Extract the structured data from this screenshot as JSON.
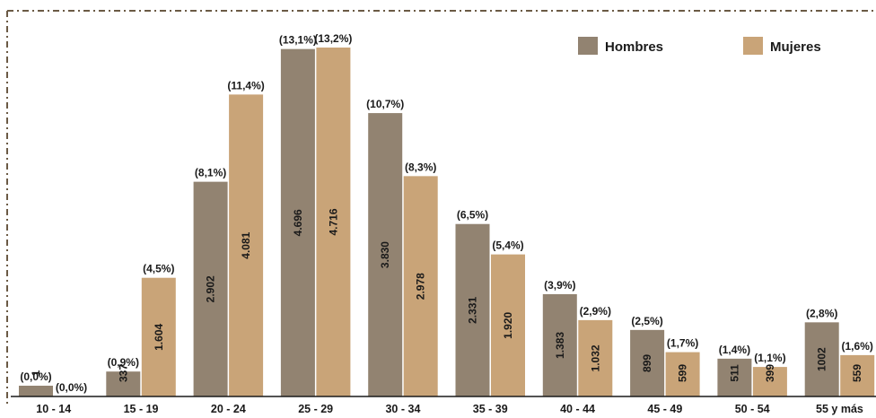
{
  "chart_data": {
    "type": "bar",
    "categories": [
      "10 - 14",
      "15 - 19",
      "20 - 24",
      "25 - 29",
      "30 - 34",
      "35 - 39",
      "40 - 44",
      "45 - 49",
      "50 - 54",
      "55 y más"
    ],
    "series": [
      {
        "name": "Hombres",
        "color": "#928371",
        "values": [
          1,
          337,
          2902,
          4696,
          3830,
          2331,
          1383,
          899,
          511,
          1002
        ],
        "value_labels": [
          "1",
          "337",
          "2.902",
          "4.696",
          "3.830",
          "2.331",
          "1.383",
          "899",
          "511",
          "1002"
        ],
        "percent_labels": [
          "(0,0%)",
          "(0,9%)",
          "(8,1%)",
          "(13,1%)",
          "(10,7%)",
          "(6,5%)",
          "(3,9%)",
          "(2,5%)",
          "(1,4%)",
          "(2,8%)"
        ]
      },
      {
        "name": "Mujeres",
        "color": "#c9a478",
        "values": [
          0,
          1604,
          4081,
          4716,
          2978,
          1920,
          1032,
          599,
          399,
          559
        ],
        "value_labels": [
          "",
          "1.604",
          "4.081",
          "4.716",
          "2.978",
          "1.920",
          "1.032",
          "599",
          "399",
          "559"
        ],
        "percent_labels": [
          "(0,0%)",
          "(4,5%)",
          "(11,4%)",
          "(13,2%)",
          "(8,3%)",
          "(5,4%)",
          "(2,9%)",
          "(1,7%)",
          "(1,1%)",
          "(1,6%)"
        ]
      }
    ],
    "title": "",
    "xlabel": "",
    "ylabel": "",
    "ylim": [
      0,
      4900
    ],
    "grid": false,
    "legend_position": "top-right"
  }
}
